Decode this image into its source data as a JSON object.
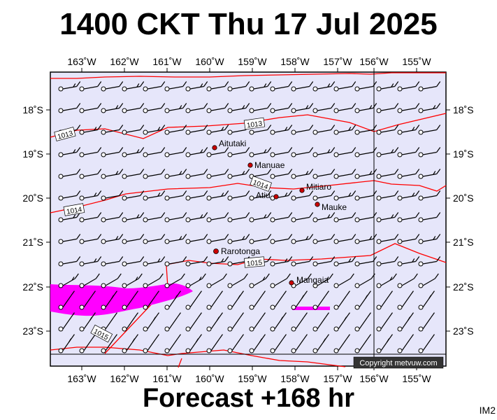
{
  "title": "1400 CKT Thu 17 Jul 2025",
  "footer": "Forecast +168 hr",
  "image_code": "IM2",
  "copyright": "Copyright metvuw.com",
  "colors": {
    "map_bg": "#e6e6fa",
    "isobar": "#ff0000",
    "rain": "#ff00ff",
    "island": "#cc0000"
  },
  "lon_labels": [
    "163˚W",
    "162˚W",
    "161˚W",
    "160˚W",
    "159˚W",
    "158˚W",
    "157˚W",
    "156˚W",
    "155˚W"
  ],
  "lat_labels": [
    "18˚S",
    "19˚S",
    "20˚S",
    "21˚S",
    "22˚S",
    "23˚S"
  ],
  "places": [
    {
      "name": "Aitutaki"
    },
    {
      "name": "Manuae"
    },
    {
      "name": "Mitiaro"
    },
    {
      "name": "Atiu"
    },
    {
      "name": "Mauke"
    },
    {
      "name": "Rarotonga"
    },
    {
      "name": "Mangaia"
    }
  ],
  "isobar_labels": [
    "1013",
    "1013",
    "1014",
    "1014",
    "1015",
    "1015"
  ]
}
